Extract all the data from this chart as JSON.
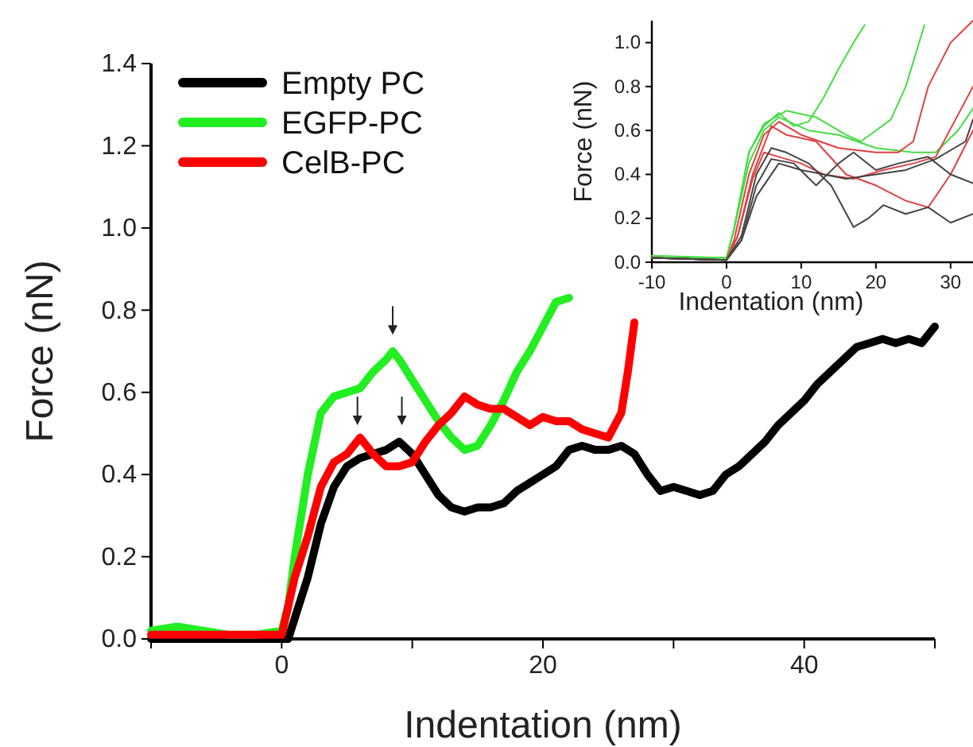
{
  "chart_data": [
    {
      "type": "line",
      "xlabel": "Indentation (nm)",
      "ylabel": "Force (nN)",
      "legend": "top left",
      "line_style": "solid",
      "marker": "none",
      "xlim": [
        -10,
        50
      ],
      "ylim": [
        0,
        1.4
      ],
      "xticks": [
        {
          "value": -10,
          "label": null
        },
        0,
        {
          "value": 10,
          "label": null
        },
        20,
        {
          "value": 30,
          "label": null
        },
        40,
        {
          "value": 50,
          "label": null
        }
      ],
      "yticks": [
        {
          "value": 0,
          "label": "0.0"
        },
        {
          "value": 0.2,
          "label": "0.2"
        },
        {
          "value": 0.4,
          "label": "0.4"
        },
        {
          "value": 0.6,
          "label": "0.6"
        },
        {
          "value": 0.8,
          "label": "0.8"
        },
        {
          "value": 1,
          "label": "1.0"
        },
        {
          "value": 1.2,
          "label": "1.2"
        },
        {
          "value": 1.4,
          "label": "1.4"
        }
      ],
      "series": [
        {
          "name": "Empty PC",
          "color": "#000000",
          "x": [
            -10,
            -5,
            0,
            0.5,
            1,
            2,
            3,
            4,
            5,
            6,
            7,
            8,
            9,
            10,
            11,
            12,
            13,
            14,
            15,
            16,
            17,
            18,
            19,
            20,
            21,
            22,
            23,
            24,
            25,
            26,
            27,
            28,
            29,
            30,
            31,
            32,
            33,
            34,
            35,
            36,
            37,
            38,
            39,
            40,
            41,
            42,
            43,
            44,
            45,
            46,
            47,
            48,
            49,
            50
          ],
          "values": [
            0,
            0,
            0,
            0,
            0.05,
            0.15,
            0.28,
            0.37,
            0.42,
            0.44,
            0.45,
            0.46,
            0.48,
            0.45,
            0.4,
            0.35,
            0.32,
            0.31,
            0.32,
            0.32,
            0.33,
            0.36,
            0.38,
            0.4,
            0.42,
            0.46,
            0.47,
            0.46,
            0.46,
            0.47,
            0.45,
            0.4,
            0.36,
            0.37,
            0.36,
            0.35,
            0.36,
            0.4,
            0.42,
            0.45,
            0.48,
            0.52,
            0.55,
            0.58,
            0.62,
            0.65,
            0.68,
            0.71,
            0.72,
            0.73,
            0.72,
            0.73,
            0.72,
            0.76
          ]
        },
        {
          "name": "EGFP-PC",
          "color": "#22ee22",
          "x": [
            -10,
            -8,
            -6,
            -4,
            -2,
            0,
            0.5,
            1,
            2,
            3,
            4,
            5,
            6,
            7,
            8,
            8.5,
            9,
            10,
            11,
            12,
            13,
            14,
            15,
            16,
            17,
            18,
            19,
            20,
            21,
            22
          ],
          "values": [
            0.02,
            0.03,
            0.02,
            0.01,
            0.01,
            0.02,
            0.08,
            0.2,
            0.4,
            0.55,
            0.59,
            0.6,
            0.61,
            0.65,
            0.68,
            0.7,
            0.68,
            0.63,
            0.58,
            0.53,
            0.49,
            0.46,
            0.47,
            0.52,
            0.58,
            0.65,
            0.7,
            0.76,
            0.82,
            0.83
          ]
        },
        {
          "name": "CelB-PC",
          "color": "#ff0000",
          "x": [
            -10,
            -6,
            -2,
            0,
            0.5,
            1,
            2,
            3,
            4,
            5,
            6,
            7,
            8,
            9,
            10,
            11,
            12,
            13,
            14,
            15,
            16,
            17,
            18,
            19,
            20,
            21,
            22,
            23,
            24,
            25,
            26,
            26.5,
            27
          ],
          "values": [
            0.01,
            0.01,
            0.01,
            0.01,
            0.08,
            0.15,
            0.25,
            0.37,
            0.43,
            0.45,
            0.49,
            0.45,
            0.42,
            0.42,
            0.43,
            0.48,
            0.52,
            0.55,
            0.59,
            0.57,
            0.56,
            0.56,
            0.54,
            0.52,
            0.54,
            0.53,
            0.53,
            0.51,
            0.5,
            0.49,
            0.55,
            0.65,
            0.77
          ]
        }
      ]
    },
    {
      "type": "line",
      "xlabel": "Indentation (nm)",
      "ylabel": "Force (nN)",
      "line_style": "solid",
      "marker": "none",
      "xlim": [
        -10,
        33
      ],
      "ylim": [
        0,
        1.1
      ],
      "xticks": [
        -10,
        0,
        10,
        20,
        30
      ],
      "yticks": [
        {
          "value": 0,
          "label": "0.0"
        },
        {
          "value": 0.2,
          "label": "0.2"
        },
        {
          "value": 0.4,
          "label": "0.4"
        },
        {
          "value": 0.6,
          "label": "0.6"
        },
        {
          "value": 0.8,
          "label": "0.8"
        },
        {
          "value": 1,
          "label": "1.0"
        }
      ],
      "series": [
        {
          "color": "#44dd44",
          "x": [
            -10,
            0,
            1,
            3,
            5,
            7,
            9,
            11,
            13,
            15,
            17,
            18.5
          ],
          "values": [
            0.03,
            0.02,
            0.15,
            0.5,
            0.62,
            0.68,
            0.62,
            0.64,
            0.75,
            0.88,
            1,
            1.08
          ]
        },
        {
          "color": "#44dd44",
          "x": [
            -10,
            0,
            1,
            3,
            5,
            8,
            12,
            16,
            18,
            20,
            22,
            24,
            26.5
          ],
          "values": [
            0.02,
            0.02,
            0.15,
            0.5,
            0.63,
            0.69,
            0.66,
            0.58,
            0.55,
            0.6,
            0.65,
            0.8,
            1.08
          ]
        },
        {
          "color": "#44dd44",
          "x": [
            -10,
            0,
            1,
            3,
            5,
            7,
            11,
            15,
            20,
            25,
            28,
            31,
            33
          ],
          "values": [
            0.02,
            0.02,
            0.15,
            0.45,
            0.6,
            0.66,
            0.6,
            0.58,
            0.52,
            0.5,
            0.5,
            0.6,
            0.7
          ]
        },
        {
          "color": "#e04040",
          "x": [
            -10,
            0,
            1,
            3,
            5,
            7,
            10,
            15,
            20,
            23,
            25,
            27,
            30,
            33
          ],
          "values": [
            0.02,
            0.01,
            0.1,
            0.4,
            0.58,
            0.64,
            0.58,
            0.52,
            0.5,
            0.5,
            0.55,
            0.8,
            1,
            1.1
          ]
        },
        {
          "color": "#e04040",
          "x": [
            -10,
            0,
            1.5,
            3.5,
            6,
            8,
            12,
            16,
            20,
            24,
            27,
            30,
            33
          ],
          "values": [
            0.02,
            0.01,
            0.12,
            0.4,
            0.62,
            0.58,
            0.55,
            0.4,
            0.35,
            0.28,
            0.25,
            0.4,
            0.6
          ]
        },
        {
          "color": "#e04040",
          "x": [
            -10,
            0,
            1.5,
            3.5,
            5,
            7,
            10,
            13,
            17,
            21,
            25,
            28,
            33
          ],
          "values": [
            0.02,
            0.01,
            0.12,
            0.38,
            0.5,
            0.48,
            0.45,
            0.4,
            0.38,
            0.42,
            0.45,
            0.48,
            0.8
          ]
        },
        {
          "color": "#444444",
          "x": [
            -10,
            0,
            2,
            4,
            6,
            8,
            11,
            14,
            17,
            19,
            21,
            24,
            27,
            30,
            33
          ],
          "values": [
            0.02,
            0.01,
            0.12,
            0.4,
            0.52,
            0.5,
            0.45,
            0.35,
            0.16,
            0.2,
            0.26,
            0.22,
            0.25,
            0.18,
            0.22
          ]
        },
        {
          "color": "#444444",
          "x": [
            -10,
            0,
            2,
            4,
            6,
            9,
            12,
            15,
            17,
            20,
            23,
            27,
            30,
            33
          ],
          "values": [
            0.02,
            0.01,
            0.1,
            0.35,
            0.47,
            0.45,
            0.35,
            0.45,
            0.5,
            0.42,
            0.45,
            0.48,
            0.4,
            0.36
          ]
        },
        {
          "color": "#444444",
          "x": [
            -10,
            0,
            2,
            4,
            7,
            10,
            13,
            16,
            20,
            24,
            28,
            32,
            33
          ],
          "values": [
            0.02,
            0.01,
            0.1,
            0.3,
            0.45,
            0.42,
            0.4,
            0.38,
            0.4,
            0.42,
            0.47,
            0.55,
            0.65
          ]
        }
      ]
    }
  ]
}
